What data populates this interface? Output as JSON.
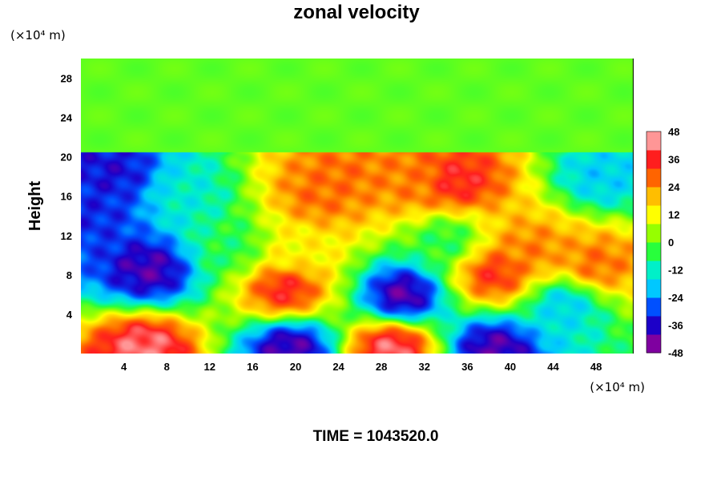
{
  "chart_data": {
    "type": "heatmap",
    "title": "zonal velocity",
    "ylabel": "Height",
    "x_unit": "(×10⁴ m)",
    "y_unit": "(×10⁴ m)",
    "x_range": [
      0,
      51.5
    ],
    "y_range": [
      0,
      30
    ],
    "x_ticks": [
      "4",
      "8",
      "12",
      "16",
      "20",
      "24",
      "28",
      "32",
      "36",
      "40",
      "44",
      "48"
    ],
    "y_ticks": [
      "4",
      "8",
      "12",
      "16",
      "20",
      "24",
      "28"
    ],
    "x_tick_values": [
      4,
      8,
      12,
      16,
      20,
      24,
      28,
      32,
      36,
      40,
      44,
      48
    ],
    "y_tick_values": [
      4,
      8,
      12,
      16,
      20,
      24,
      28
    ],
    "colorbar": {
      "min": -48,
      "max": 48,
      "ticks": [
        "48",
        "36",
        "24",
        "12",
        "0",
        "-12",
        "-24",
        "-36",
        "-48"
      ],
      "tick_values": [
        48,
        36,
        24,
        12,
        0,
        -12,
        -24,
        -36,
        -48
      ],
      "colors": [
        "#7f00a0",
        "#1c00c8",
        "#0050ff",
        "#00c8ff",
        "#00f0c8",
        "#28ff3c",
        "#96ff00",
        "#ffff00",
        "#ffbe00",
        "#ff6400",
        "#ff1e1e",
        "#ff9696"
      ]
    },
    "grid": false,
    "features": [
      {
        "x": 3.0,
        "y": 18.5,
        "value": -38
      },
      {
        "x": 1.0,
        "y": 14.5,
        "value": -35
      },
      {
        "x": 6.5,
        "y": 8.5,
        "value": -44
      },
      {
        "x": 10.0,
        "y": 16.0,
        "value": -14
      },
      {
        "x": 19.0,
        "y": 6.5,
        "value": 40
      },
      {
        "x": 20.0,
        "y": 10.5,
        "value": 14
      },
      {
        "x": 24.0,
        "y": 18.0,
        "value": 30
      },
      {
        "x": 22.0,
        "y": 16.0,
        "value": 30
      },
      {
        "x": 35.0,
        "y": 17.5,
        "value": 40
      },
      {
        "x": 31.0,
        "y": 17.5,
        "value": 28
      },
      {
        "x": 30.0,
        "y": 6.0,
        "value": -46
      },
      {
        "x": 38.5,
        "y": 8.0,
        "value": 38
      },
      {
        "x": 42.0,
        "y": 10.5,
        "value": 28
      },
      {
        "x": 48.0,
        "y": 9.0,
        "value": 30
      },
      {
        "x": 45.0,
        "y": 5.0,
        "value": -20
      },
      {
        "x": 48.5,
        "y": 18.0,
        "value": -20
      },
      {
        "x": 6.0,
        "y": 0.5,
        "value": 46
      },
      {
        "x": 29.0,
        "y": 0.5,
        "value": 46
      },
      {
        "x": 19.5,
        "y": 0.5,
        "value": -45
      },
      {
        "x": 38.5,
        "y": 0.5,
        "value": -45
      },
      {
        "x": 14.0,
        "y": 11.0,
        "value": -6
      },
      {
        "x": 34.0,
        "y": 11.5,
        "value": -6
      }
    ],
    "upper_layer": {
      "y_from": 20.5,
      "value": 0
    }
  },
  "footer": {
    "time_text": "TIME = 1043520.0"
  }
}
